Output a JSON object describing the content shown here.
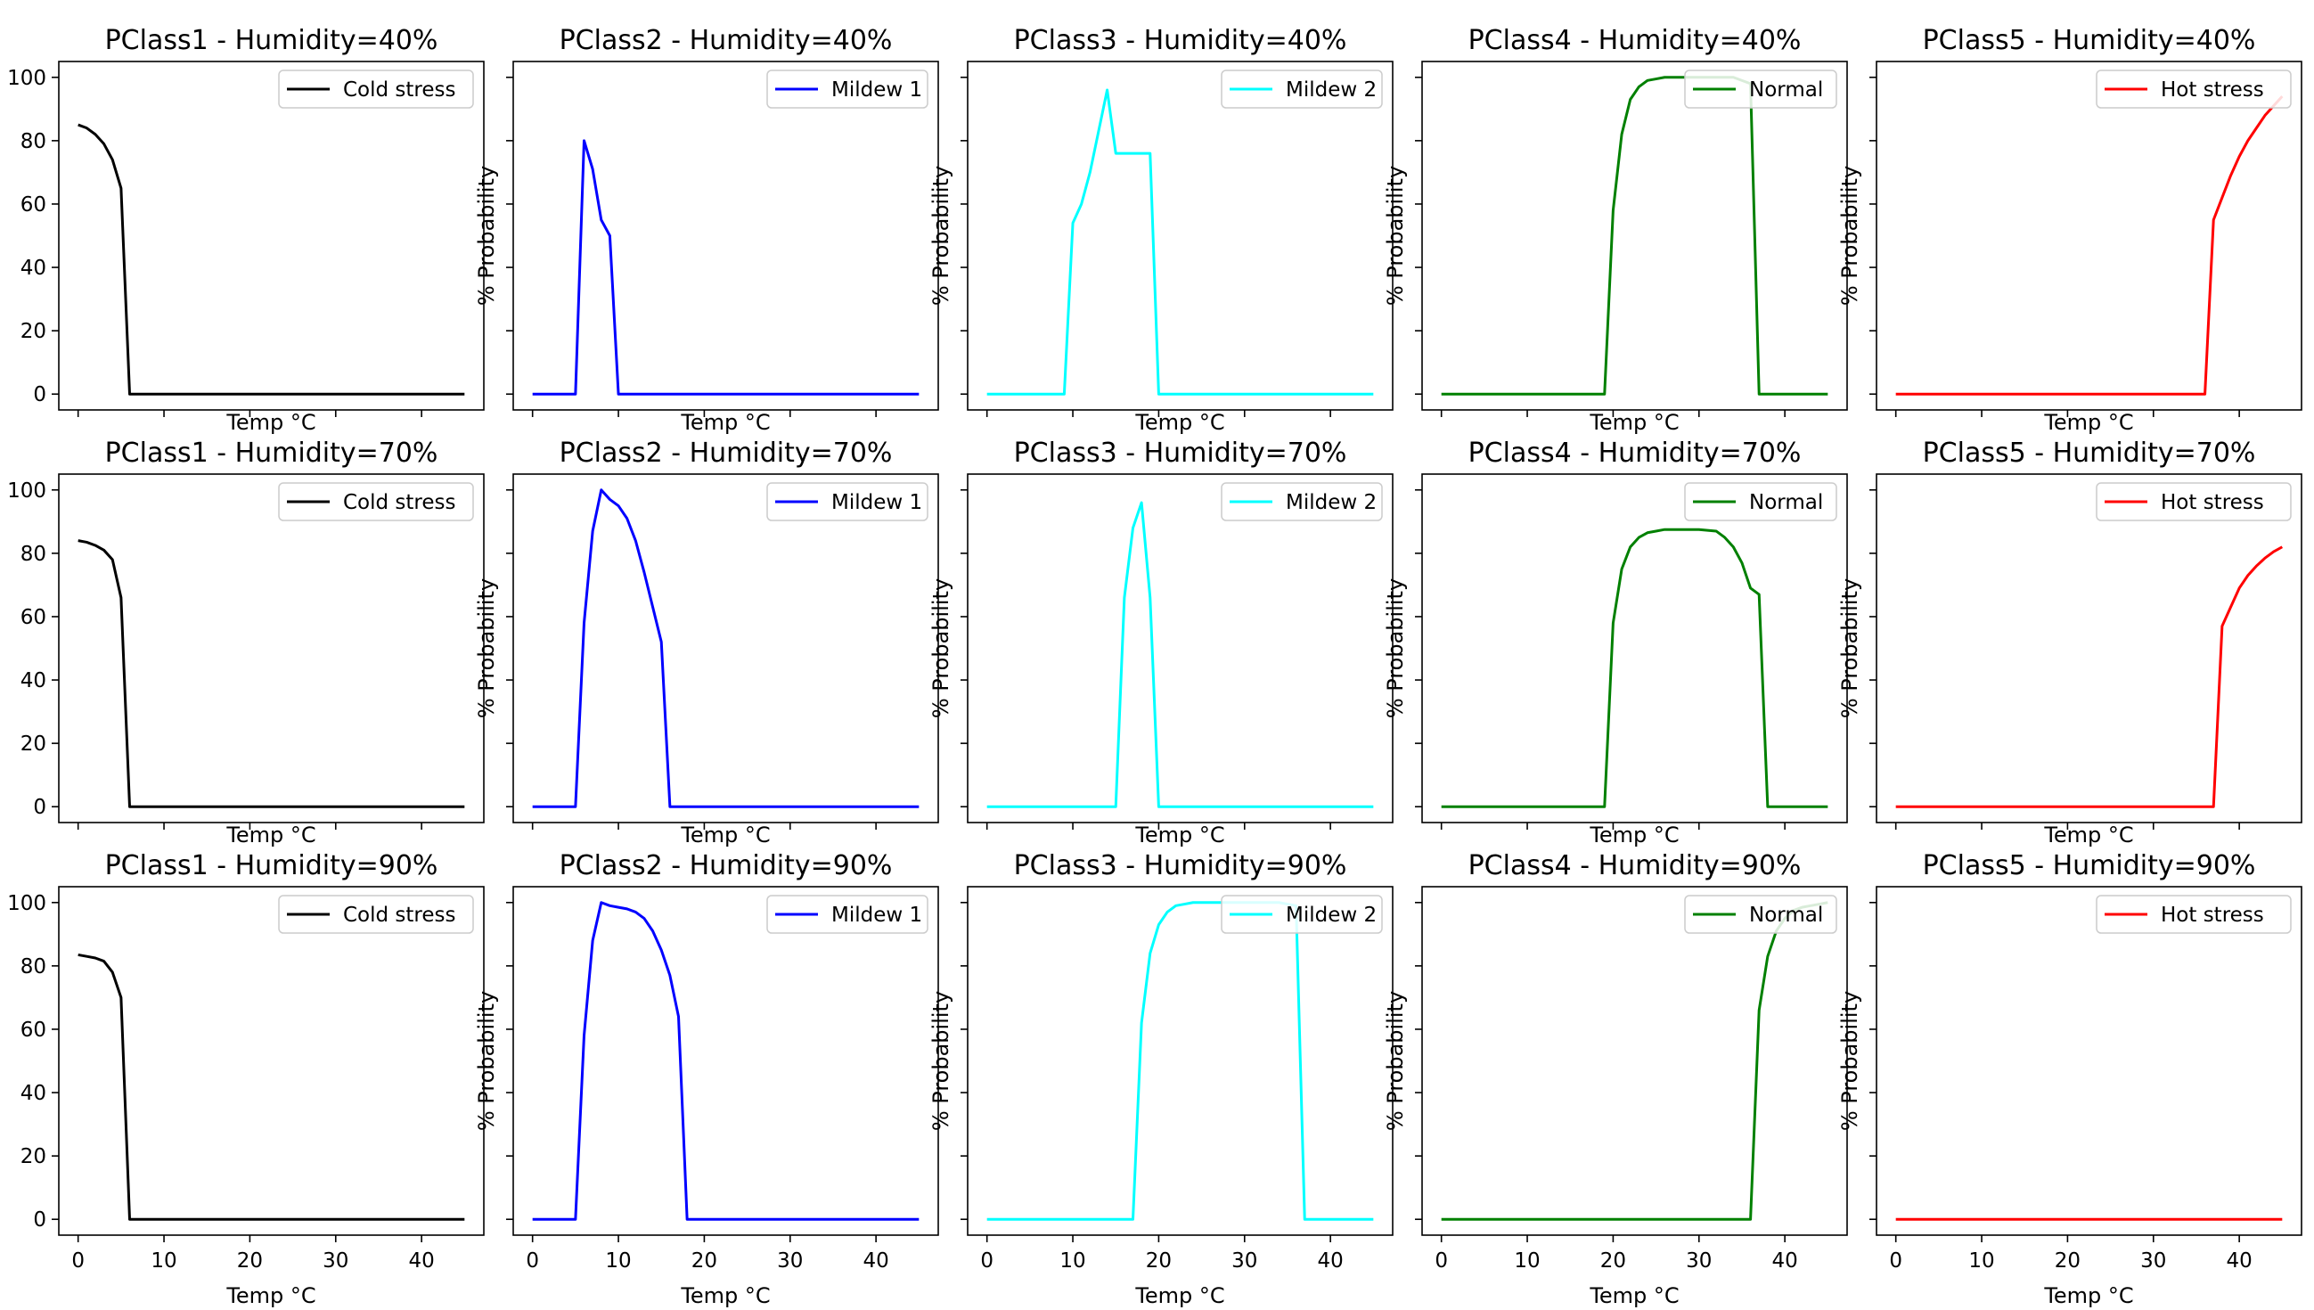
{
  "chart_data": {
    "type": "line",
    "layout": "3x5 grid",
    "xlabel": "Temp °C",
    "ylabel": "% Probability",
    "xlim": [
      -2.25,
      47.25
    ],
    "ylim": [
      -5,
      105
    ],
    "xticks": [
      0,
      10,
      20,
      30,
      40
    ],
    "yticks": [
      0,
      20,
      40,
      60,
      80,
      100
    ],
    "xtick_labels": [
      "0",
      "10",
      "20",
      "30",
      "40"
    ],
    "ytick_labels": [
      "0",
      "20",
      "40",
      "60",
      "80",
      "100"
    ],
    "legend_position": "upper right",
    "panels": [
      {
        "title": "PClass1 -  Humidity=40%",
        "series_name": "Cold stress",
        "color": "#000000",
        "x": [
          0,
          1,
          2,
          3,
          4,
          5,
          6,
          45
        ],
        "y": [
          85,
          84,
          82,
          79,
          74,
          65,
          0,
          0
        ]
      },
      {
        "title": "PClass2 -  Humidity=40%",
        "series_name": "Mildew 1",
        "color": "#0000ff",
        "x": [
          0,
          5,
          6,
          7,
          8,
          9,
          10,
          45
        ],
        "y": [
          0,
          0,
          80,
          71,
          55,
          50,
          0,
          0
        ]
      },
      {
        "title": "PClass3 -  Humidity=40%",
        "series_name": "Mildew 2",
        "color": "#00ffff",
        "x": [
          0,
          9,
          10,
          11,
          12,
          13,
          14,
          15,
          16,
          17,
          18,
          19,
          20,
          45
        ],
        "y": [
          0,
          0,
          54,
          60,
          70,
          83,
          96,
          76,
          76,
          76,
          76,
          76,
          0,
          0
        ]
      },
      {
        "title": "PClass4 -  Humidity=40%",
        "series_name": "Normal",
        "color": "#008000",
        "x": [
          0,
          19,
          20,
          21,
          22,
          23,
          24,
          25,
          26,
          28,
          30,
          32,
          34,
          36,
          37,
          45
        ],
        "y": [
          0,
          0,
          58,
          82,
          93,
          97,
          99,
          99.5,
          100,
          100,
          100,
          100,
          100,
          98,
          0,
          0
        ]
      },
      {
        "title": "PClass5 -  Humidity=40%",
        "series_name": "Hot stress",
        "color": "#ff0000",
        "x": [
          0,
          36,
          37,
          38,
          39,
          40,
          41,
          42,
          43,
          44,
          45
        ],
        "y": [
          0,
          0,
          55,
          62,
          69,
          75,
          80,
          84,
          88,
          91,
          94
        ]
      },
      {
        "title": "PClass1 -  Humidity=70%",
        "series_name": "Cold stress",
        "color": "#000000",
        "x": [
          0,
          1,
          2,
          3,
          4,
          5,
          6,
          45
        ],
        "y": [
          84,
          83.5,
          82.5,
          81,
          78,
          66,
          0,
          0
        ]
      },
      {
        "title": "PClass2 -  Humidity=70%",
        "series_name": "Mildew 1",
        "color": "#0000ff",
        "x": [
          0,
          5,
          6,
          7,
          8,
          9,
          10,
          11,
          12,
          13,
          14,
          15,
          16,
          45
        ],
        "y": [
          0,
          0,
          58,
          87,
          100,
          97,
          95,
          91,
          84,
          74,
          63,
          52,
          0,
          0
        ]
      },
      {
        "title": "PClass3 -  Humidity=70%",
        "series_name": "Mildew 2",
        "color": "#00ffff",
        "x": [
          0,
          15,
          16,
          17,
          18,
          19,
          20,
          45
        ],
        "y": [
          0,
          0,
          66,
          88,
          96,
          66,
          0,
          0
        ]
      },
      {
        "title": "PClass4 -  Humidity=70%",
        "series_name": "Normal",
        "color": "#008000",
        "x": [
          0,
          19,
          20,
          21,
          22,
          23,
          24,
          25,
          26,
          28,
          30,
          32,
          33,
          34,
          35,
          36,
          37,
          38,
          45
        ],
        "y": [
          0,
          0,
          58,
          75,
          82,
          85,
          86.5,
          87,
          87.5,
          87.5,
          87.5,
          87,
          85,
          82,
          77,
          69,
          67,
          0,
          0
        ]
      },
      {
        "title": "PClass5 -  Humidity=70%",
        "series_name": "Hot stress",
        "color": "#ff0000",
        "x": [
          0,
          37,
          38,
          39,
          40,
          41,
          42,
          43,
          44,
          45
        ],
        "y": [
          0,
          0,
          57,
          63,
          69,
          73,
          76,
          78.5,
          80.5,
          82
        ]
      },
      {
        "title": "PClass1 -  Humidity=90%",
        "series_name": "Cold stress",
        "color": "#000000",
        "x": [
          0,
          1,
          2,
          3,
          4,
          5,
          6,
          45
        ],
        "y": [
          83.5,
          83,
          82.5,
          81.5,
          78,
          70,
          0,
          0
        ]
      },
      {
        "title": "PClass2 -  Humidity=90%",
        "series_name": "Mildew 1",
        "color": "#0000ff",
        "x": [
          0,
          5,
          6,
          7,
          8,
          9,
          10,
          11,
          12,
          13,
          14,
          15,
          16,
          17,
          18,
          45
        ],
        "y": [
          0,
          0,
          58,
          88,
          100,
          99,
          98.5,
          98,
          97,
          95,
          91,
          85,
          77,
          64,
          0,
          0
        ]
      },
      {
        "title": "PClass3 -  Humidity=90%",
        "series_name": "Mildew 2",
        "color": "#00ffff",
        "x": [
          0,
          17,
          18,
          19,
          20,
          21,
          22,
          23,
          24,
          25,
          26,
          28,
          30,
          32,
          34,
          36,
          37,
          45
        ],
        "y": [
          0,
          0,
          62,
          84,
          93,
          97,
          99,
          99.5,
          100,
          100,
          100,
          100,
          100,
          100,
          100,
          99,
          0,
          0
        ]
      },
      {
        "title": "PClass4 -  Humidity=90%",
        "series_name": "Normal",
        "color": "#008000",
        "x": [
          0,
          36,
          37,
          38,
          39,
          40,
          41,
          42,
          43,
          44,
          45
        ],
        "y": [
          0,
          0,
          66,
          83,
          91,
          95,
          97.5,
          98.5,
          99,
          99.5,
          100
        ]
      },
      {
        "title": "PClass5 -  Humidity=90%",
        "series_name": "Hot stress",
        "color": "#ff0000",
        "x": [
          0,
          45
        ],
        "y": [
          0,
          0
        ]
      }
    ]
  }
}
